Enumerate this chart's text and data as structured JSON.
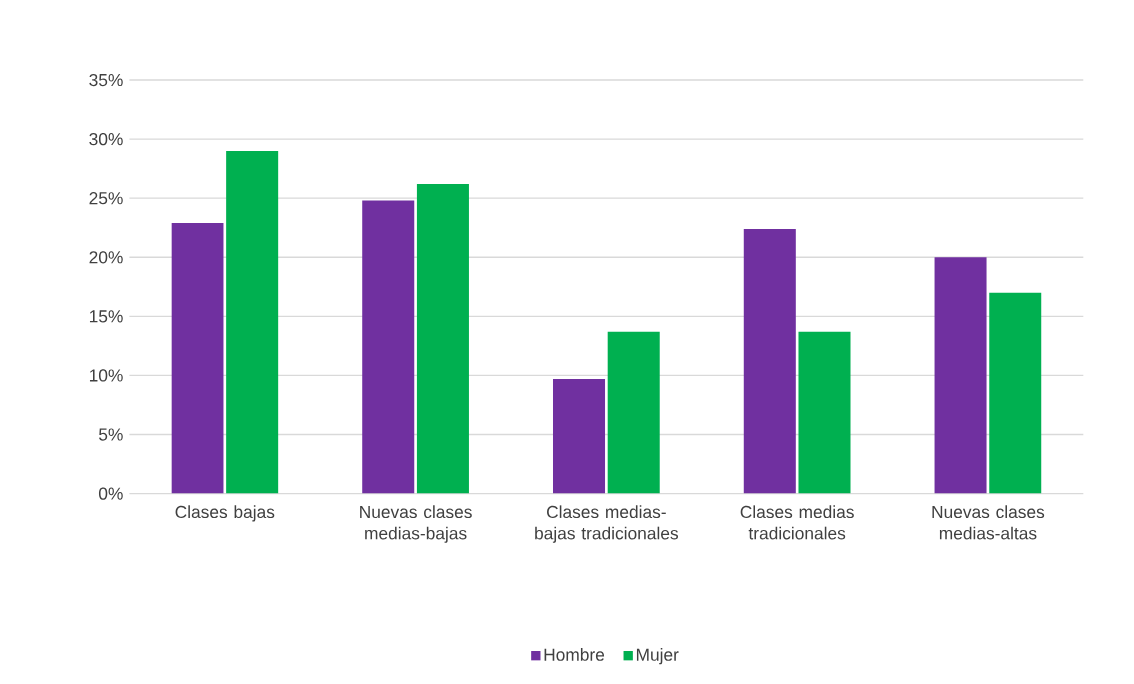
{
  "chart_data": {
    "type": "bar",
    "categories": [
      "Clases bajas",
      "Nuevas clases medias-bajas",
      "Clases medias-bajas tradicionales",
      "Clases medias tradicionales",
      "Nuevas clases medias-altas"
    ],
    "series": [
      {
        "name": "Hombre",
        "color": "#7030a0",
        "values": [
          22.9,
          24.8,
          9.7,
          22.4,
          20.0
        ]
      },
      {
        "name": "Mujer",
        "color": "#00b050",
        "values": [
          29.0,
          26.2,
          13.7,
          13.7,
          17.0
        ]
      }
    ],
    "ylim": [
      0,
      35
    ],
    "yticks": [
      {
        "value": 0,
        "label": "0%"
      },
      {
        "value": 5,
        "label": "5%"
      },
      {
        "value": 10,
        "label": "10%"
      },
      {
        "value": 15,
        "label": "15%"
      },
      {
        "value": 20,
        "label": "20%"
      },
      {
        "value": 25,
        "label": "25%"
      },
      {
        "value": 30,
        "label": "30%"
      },
      {
        "value": 35,
        "label": "35%"
      }
    ],
    "grid": "y",
    "legend": "bottom"
  }
}
